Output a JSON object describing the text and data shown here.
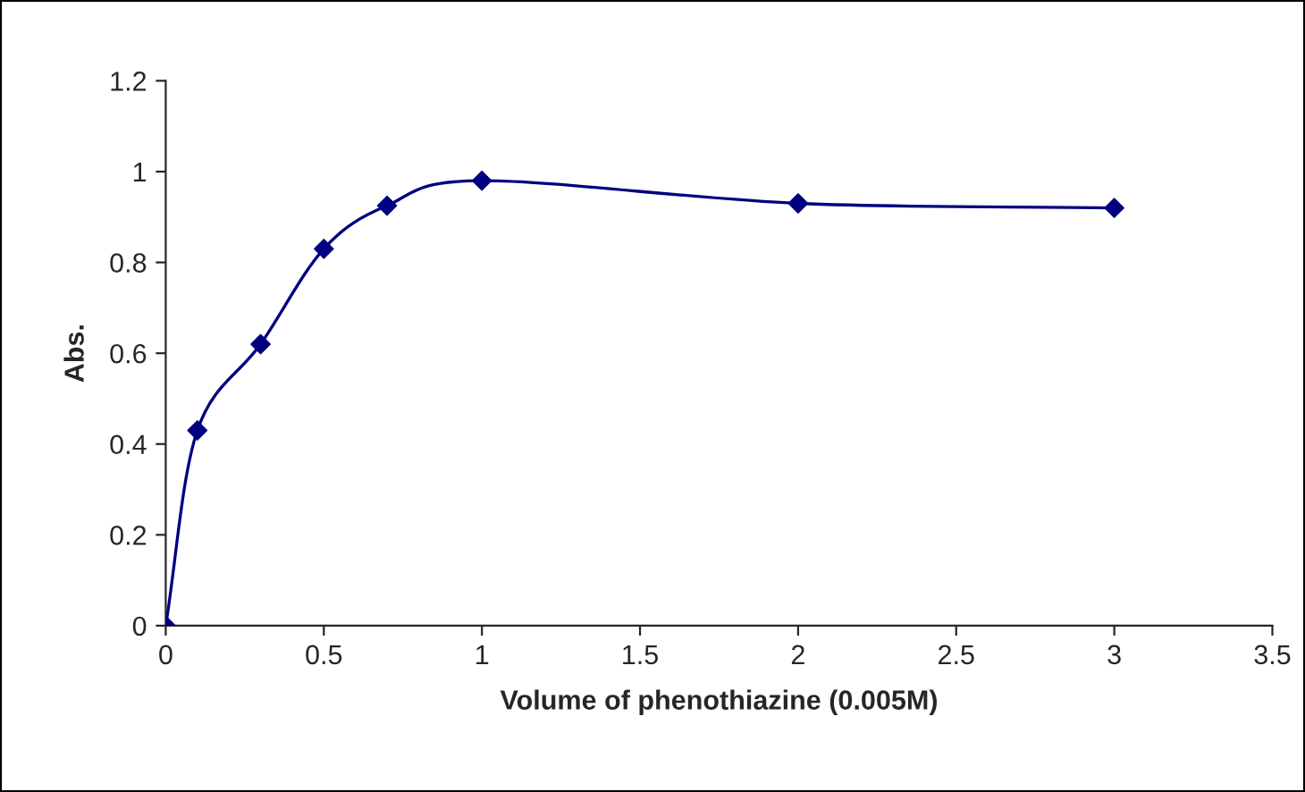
{
  "chart_data": {
    "type": "line",
    "xlabel": "Volume of phenothiazine (0.005M)",
    "ylabel": "Abs.",
    "x": [
      0,
      0.1,
      0.3,
      0.5,
      0.7,
      1,
      2,
      3
    ],
    "series": [
      {
        "color": "#000080",
        "values": [
          0,
          0.43,
          0.62,
          0.83,
          0.925,
          0.98,
          0.93,
          0.92
        ]
      }
    ],
    "xlim": [
      0,
      3.5
    ],
    "xticks": [
      0,
      0.5,
      1,
      1.5,
      2,
      2.5,
      3,
      3.5
    ],
    "ylim": [
      0,
      1.2
    ],
    "yticks": [
      0,
      0.2,
      0.4,
      0.6,
      0.8,
      1,
      1.2
    ],
    "marker": "diamond",
    "line_style": "solid",
    "grid": false
  }
}
